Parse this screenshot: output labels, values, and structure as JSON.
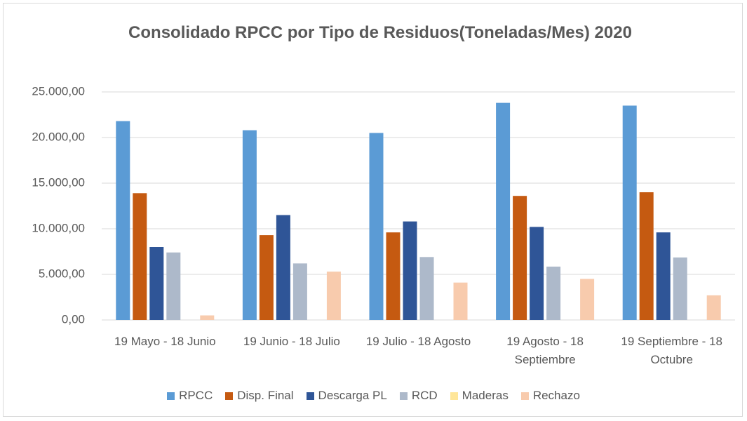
{
  "chart_data": {
    "type": "bar",
    "title": "Consolidado  RPCC por Tipo de Residuos(Toneladas/Mes) 2020",
    "categories": [
      "19 Mayo - 18 Junio",
      "19 Junio - 18 Julio",
      "19 Julio - 18 Agosto",
      "19 Agosto - 18 Septiembre",
      "19 Septiembre - 18 Octubre"
    ],
    "series": [
      {
        "name": "RPCC",
        "color": "#5b9bd5",
        "values": [
          21800,
          20800,
          20500,
          23800,
          23500
        ]
      },
      {
        "name": "Disp. Final",
        "color": "#c55a11",
        "values": [
          13900,
          9300,
          9600,
          13600,
          14000
        ]
      },
      {
        "name": "Descarga PL",
        "color": "#2f5597",
        "values": [
          8000,
          11500,
          10800,
          10200,
          9600
        ]
      },
      {
        "name": "RCD",
        "color": "#adb9ca",
        "values": [
          7400,
          6200,
          6900,
          5850,
          6850
        ]
      },
      {
        "name": "Maderas",
        "color": "#ffe699",
        "values": [
          0,
          0,
          0,
          0,
          0
        ]
      },
      {
        "name": "Rechazo",
        "color": "#f8cbad",
        "values": [
          500,
          5300,
          4100,
          4500,
          2700
        ]
      }
    ],
    "ylim": [
      0,
      25000
    ],
    "yticks": [
      {
        "value": 0,
        "label": "0,00"
      },
      {
        "value": 5000,
        "label": "5.000,00"
      },
      {
        "value": 10000,
        "label": "10.000,00"
      },
      {
        "value": 15000,
        "label": "15.000,00"
      },
      {
        "value": 20000,
        "label": "20.000,00"
      },
      {
        "value": 25000,
        "label": "25.000,00"
      }
    ],
    "grid": true,
    "legend": "bottom"
  }
}
